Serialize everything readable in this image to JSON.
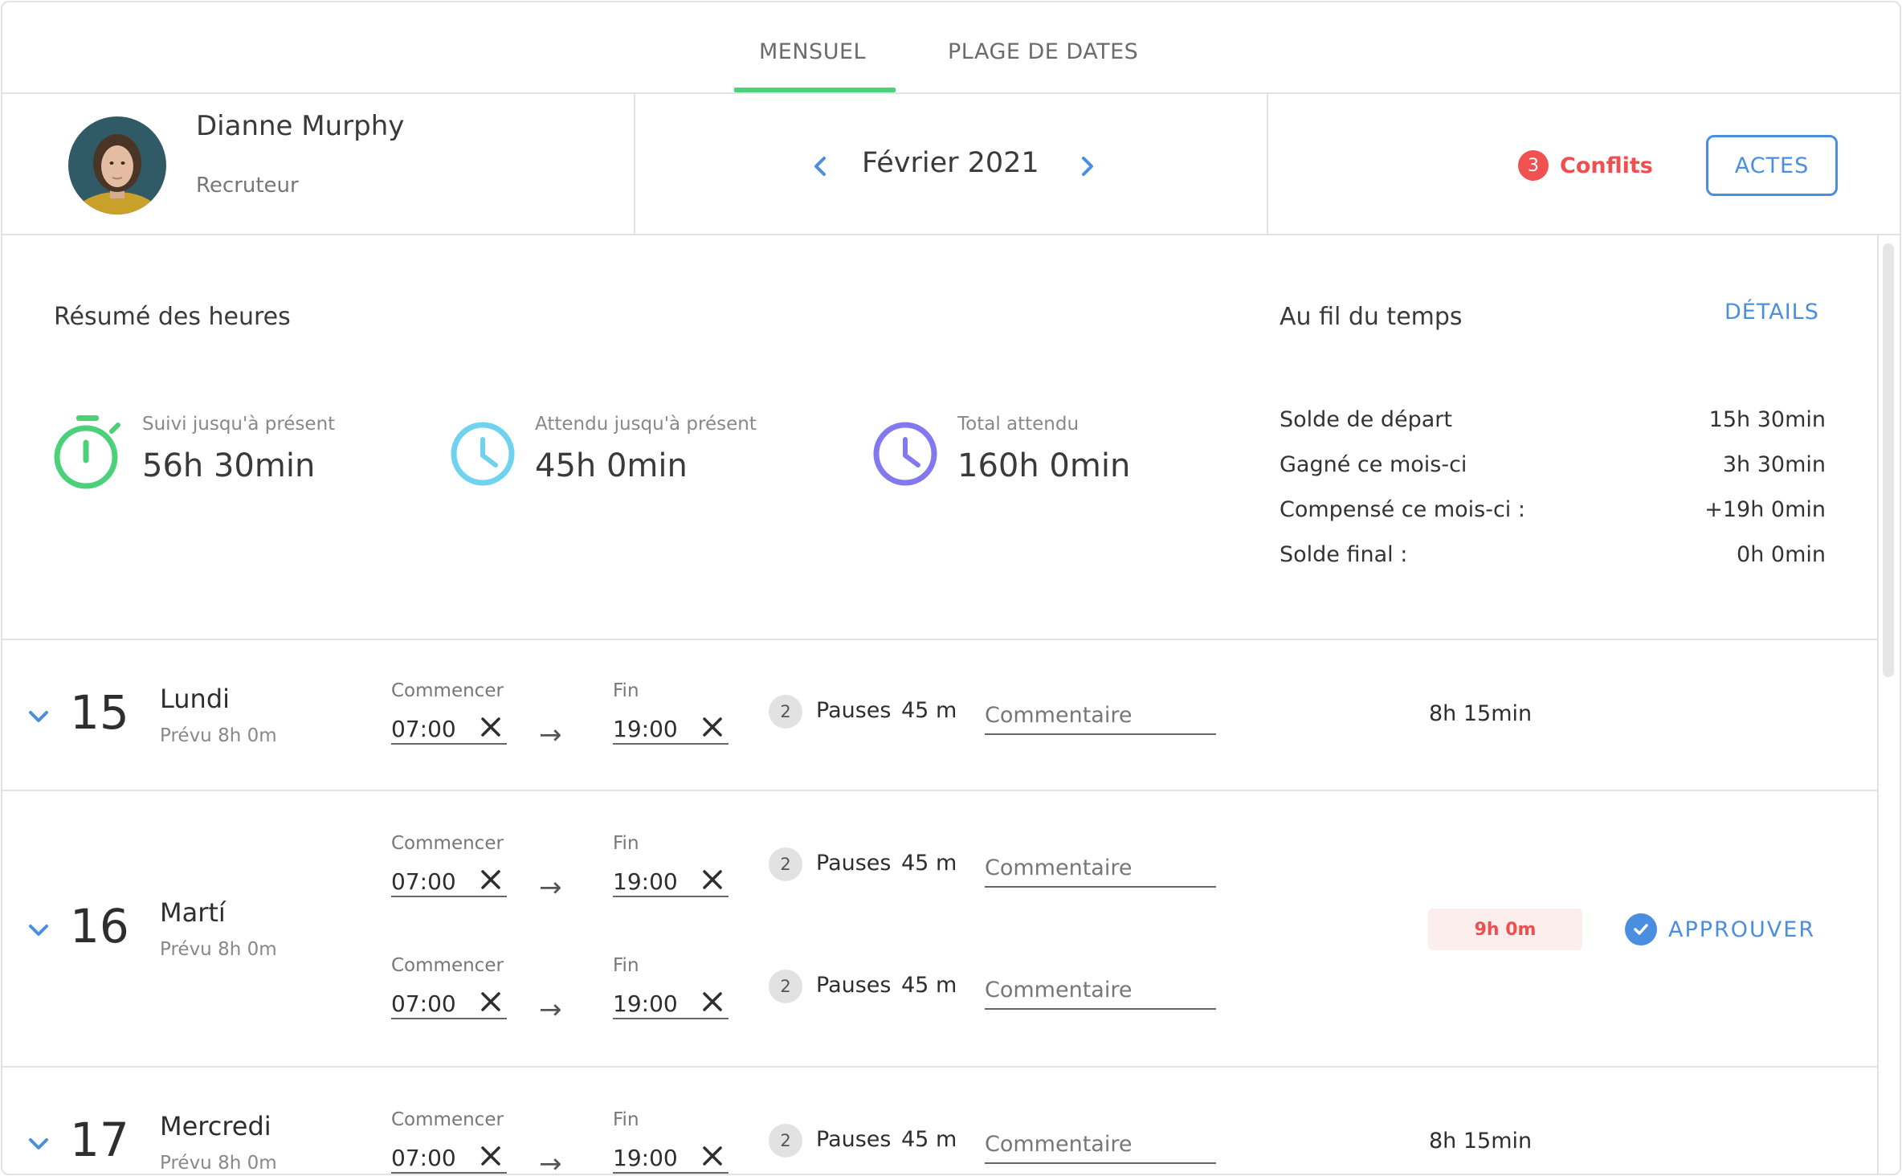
{
  "tabs": {
    "monthly": "MENSUEL",
    "date_range": "PLAGE DE DATES"
  },
  "user": {
    "name": "Dianne Murphy",
    "role": "Recruteur"
  },
  "period": {
    "label": "Février 2021"
  },
  "conflicts": {
    "count": "3",
    "label": "Conflits"
  },
  "actions_button": "ACTES",
  "summary": {
    "title": "Résumé des heures",
    "tracked": {
      "label": "Suivi jusqu'à présent",
      "value": "56h 30min"
    },
    "expected": {
      "label": "Attendu jusqu'à présent",
      "value": "45h 0min"
    },
    "total_expected": {
      "label": "Total attendu",
      "value": "160h 0min"
    }
  },
  "over_time": {
    "title": "Au fil du temps",
    "details_link": "DÉTAILS",
    "rows": [
      {
        "label": "Solde de départ",
        "value": "15h 30min"
      },
      {
        "label": "Gagné ce mois-ci",
        "value": "3h 30min"
      },
      {
        "label": "Compensé ce mois-ci :",
        "value": "+19h 0min"
      },
      {
        "label": "Solde final :",
        "value": "0h 0min"
      }
    ]
  },
  "labels": {
    "start": "Commencer",
    "end": "Fin",
    "pauses": "Pauses",
    "comment_placeholder": "Commentaire",
    "arrow": "→",
    "approve": "APPROUVER"
  },
  "days": [
    {
      "number": "15",
      "name": "Lundi",
      "planned": "Prévu 8h 0m",
      "shifts": [
        {
          "start": "07:00",
          "end": "19:00",
          "pause_count": "2",
          "pause_duration": "45 m"
        }
      ],
      "total": "8h 15min"
    },
    {
      "number": "16",
      "name": "Martí",
      "planned": "Prévu 8h 0m",
      "shifts": [
        {
          "start": "07:00",
          "end": "19:00",
          "pause_count": "2",
          "pause_duration": "45 m"
        },
        {
          "start": "07:00",
          "end": "19:00",
          "pause_count": "2",
          "pause_duration": "45 m"
        }
      ],
      "total": "9h 0m"
    },
    {
      "number": "17",
      "name": "Mercredi",
      "planned": "Prévu 8h 0m",
      "shifts": [
        {
          "start": "07:00",
          "end": "19:00",
          "pause_count": "2",
          "pause_duration": "45 m"
        }
      ],
      "total": "8h 15min"
    }
  ],
  "colors": {
    "accent_blue": "#4a8ee0",
    "tab_active": "#4cd07a",
    "conflict_red": "#ef4f4f",
    "tracked_green": "#4cd07a",
    "expected_cyan": "#6fd3f0",
    "total_purple": "#8278f0"
  }
}
